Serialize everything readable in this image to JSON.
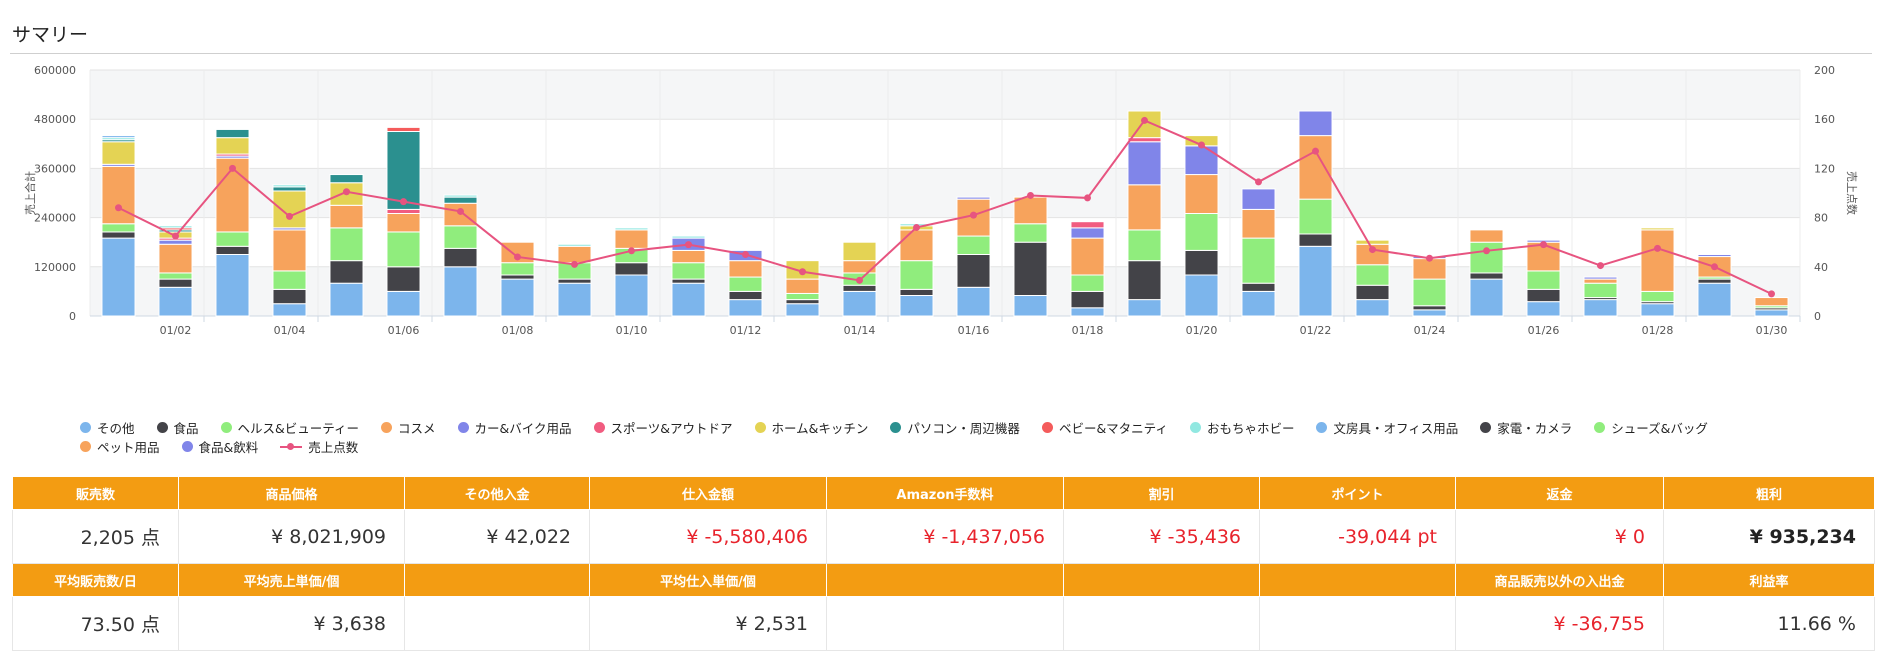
{
  "header": {
    "title": "サマリー"
  },
  "chart_data": {
    "type": "bar",
    "stacked": true,
    "categories": [
      "01/01",
      "01/02",
      "01/03",
      "01/04",
      "01/05",
      "01/06",
      "01/07",
      "01/08",
      "01/09",
      "01/10",
      "01/11",
      "01/12",
      "01/13",
      "01/14",
      "01/15",
      "01/16",
      "01/17",
      "01/18",
      "01/19",
      "01/20",
      "01/21",
      "01/22",
      "01/23",
      "01/24",
      "01/25",
      "01/26",
      "01/27",
      "01/28",
      "01/29",
      "01/30"
    ],
    "tick_labels": [
      "01/02",
      "01/04",
      "01/06",
      "01/08",
      "01/10",
      "01/12",
      "01/14",
      "01/16",
      "01/18",
      "01/20",
      "01/22",
      "01/24",
      "01/26",
      "01/28",
      "01/30"
    ],
    "ylabel": "売上合計",
    "y2label": "売上点数",
    "ylim": [
      0,
      600000
    ],
    "y2lim": [
      0,
      200
    ],
    "yticks": [
      "0",
      "120000",
      "240000",
      "360000",
      "480000",
      "600000"
    ],
    "y2ticks": [
      "0",
      "40",
      "80",
      "120",
      "160",
      "200"
    ],
    "legend_position": "bottom",
    "series": [
      {
        "name": "その他",
        "color": "#7cb5ec",
        "values": [
          190000,
          70000,
          150000,
          30000,
          80000,
          60000,
          120000,
          90000,
          80000,
          100000,
          80000,
          40000,
          30000,
          60000,
          50000,
          70000,
          50000,
          20000,
          40000,
          100000,
          60000,
          170000,
          40000,
          15000,
          90000,
          35000,
          40000,
          30000,
          80000,
          15000
        ]
      },
      {
        "name": "食品",
        "color": "#434348",
        "values": [
          15000,
          20000,
          20000,
          35000,
          55000,
          60000,
          45000,
          10000,
          10000,
          30000,
          10000,
          20000,
          10000,
          15000,
          15000,
          80000,
          130000,
          40000,
          95000,
          60000,
          20000,
          30000,
          35000,
          10000,
          15000,
          30000,
          5000,
          5000,
          10000,
          5000
        ]
      },
      {
        "name": "ヘルス&ビューティー",
        "color": "#90ed7d",
        "values": [
          20000,
          15000,
          35000,
          45000,
          80000,
          85000,
          55000,
          30000,
          40000,
          35000,
          40000,
          35000,
          15000,
          30000,
          70000,
          45000,
          45000,
          40000,
          75000,
          90000,
          110000,
          85000,
          50000,
          65000,
          75000,
          45000,
          35000,
          25000,
          5000,
          5000
        ]
      },
      {
        "name": "コスメ",
        "color": "#f7a35c",
        "values": [
          140000,
          70000,
          180000,
          100000,
          55000,
          45000,
          55000,
          50000,
          40000,
          45000,
          30000,
          40000,
          35000,
          30000,
          75000,
          90000,
          65000,
          90000,
          110000,
          95000,
          70000,
          155000,
          50000,
          50000,
          30000,
          70000,
          10000,
          150000,
          50000,
          20000
        ]
      },
      {
        "name": "カー&バイク用品",
        "color": "#8085e9",
        "values": [
          5000,
          10000,
          5000,
          5000,
          0,
          0,
          0,
          0,
          0,
          0,
          30000,
          25000,
          0,
          0,
          0,
          5000,
          0,
          25000,
          105000,
          70000,
          50000,
          60000,
          0,
          5000,
          0,
          5000,
          5000,
          0,
          5000,
          0
        ]
      },
      {
        "name": "スポーツ&アウトドア",
        "color": "#f15c80",
        "values": [
          0,
          5000,
          5000,
          0,
          0,
          10000,
          0,
          0,
          0,
          0,
          0,
          0,
          0,
          0,
          0,
          0,
          0,
          15000,
          10000,
          0,
          0,
          0,
          0,
          0,
          0,
          0,
          0,
          0,
          0,
          0
        ]
      },
      {
        "name": "ホーム&キッチン",
        "color": "#e4d354",
        "values": [
          55000,
          15000,
          40000,
          90000,
          55000,
          0,
          0,
          0,
          0,
          0,
          0,
          0,
          45000,
          45000,
          10000,
          0,
          0,
          0,
          65000,
          25000,
          0,
          0,
          10000,
          0,
          0,
          0,
          0,
          5000,
          0,
          0
        ]
      },
      {
        "name": "パソコン・周辺機器",
        "color": "#2b908f",
        "values": [
          5000,
          5000,
          20000,
          10000,
          20000,
          190000,
          15000,
          0,
          0,
          0,
          0,
          0,
          0,
          0,
          0,
          0,
          0,
          0,
          0,
          0,
          0,
          0,
          0,
          0,
          0,
          0,
          0,
          0,
          0,
          0
        ]
      },
      {
        "name": "ベビー&マタニティ",
        "color": "#f45b5b",
        "values": [
          0,
          5000,
          0,
          0,
          0,
          10000,
          0,
          0,
          0,
          0,
          0,
          0,
          0,
          0,
          0,
          0,
          0,
          0,
          0,
          0,
          0,
          0,
          0,
          0,
          0,
          0,
          0,
          0,
          0,
          0
        ]
      },
      {
        "name": "おもちゃホビー",
        "color": "#91e8e1",
        "values": [
          5000,
          5000,
          0,
          5000,
          0,
          0,
          5000,
          0,
          5000,
          5000,
          5000,
          0,
          0,
          0,
          5000,
          0,
          0,
          0,
          0,
          0,
          0,
          0,
          0,
          0,
          0,
          0,
          0,
          0,
          0,
          0
        ]
      },
      {
        "name": "文房具・オフィス用品",
        "color": "#7cb5ec",
        "values": [
          5000,
          0,
          0,
          0,
          0,
          0,
          0,
          0,
          0,
          0,
          0,
          0,
          0,
          0,
          0,
          0,
          0,
          0,
          0,
          0,
          0,
          0,
          0,
          0,
          0,
          0,
          0,
          0,
          0,
          0
        ]
      },
      {
        "name": "家電・カメラ",
        "color": "#434348",
        "values": [
          0,
          0,
          0,
          0,
          0,
          0,
          0,
          0,
          0,
          0,
          0,
          0,
          0,
          0,
          0,
          0,
          0,
          0,
          0,
          0,
          0,
          0,
          0,
          0,
          0,
          0,
          0,
          0,
          0,
          0
        ]
      },
      {
        "name": "シューズ&バッグ",
        "color": "#90ed7d",
        "values": [
          0,
          0,
          0,
          0,
          0,
          0,
          0,
          0,
          0,
          0,
          0,
          0,
          0,
          0,
          0,
          0,
          0,
          0,
          0,
          0,
          0,
          0,
          0,
          0,
          0,
          0,
          0,
          0,
          0,
          0
        ]
      },
      {
        "name": "ペット用品",
        "color": "#f7a35c",
        "values": [
          0,
          0,
          0,
          0,
          0,
          0,
          0,
          0,
          0,
          0,
          0,
          0,
          0,
          0,
          0,
          0,
          0,
          0,
          0,
          0,
          0,
          0,
          0,
          0,
          0,
          0,
          0,
          0,
          0,
          0
        ]
      },
      {
        "name": "食品&飲料",
        "color": "#8085e9",
        "values": [
          0,
          0,
          0,
          0,
          0,
          0,
          0,
          0,
          0,
          0,
          0,
          0,
          0,
          0,
          0,
          0,
          0,
          0,
          0,
          0,
          0,
          0,
          0,
          0,
          0,
          0,
          0,
          0,
          0,
          0
        ]
      }
    ],
    "line_series": {
      "name": "売上点数",
      "color": "#e75480",
      "values": [
        88,
        65,
        120,
        81,
        101,
        93,
        85,
        48,
        42,
        53,
        58,
        50,
        36,
        29,
        72,
        82,
        98,
        96,
        159,
        139,
        109,
        134,
        54,
        47,
        53,
        58,
        41,
        55,
        40,
        18
      ]
    }
  },
  "table": {
    "headers1": [
      "販売数",
      "商品価格",
      "その他入金",
      "仕入金額",
      "Amazon手数料",
      "割引",
      "ポイント",
      "返金",
      "粗利"
    ],
    "values1": [
      "2,205 点",
      "¥ 8,021,909",
      "¥ 42,022",
      "¥ -5,580,406",
      "¥ -1,437,056",
      "¥ -35,436",
      "-39,044 pt",
      "¥ 0",
      "¥ 935,234"
    ],
    "headers2": [
      "平均販売数/日",
      "平均売上単価/個",
      "",
      "平均仕入単価/個",
      "",
      "",
      "",
      "商品販売以外の入出金",
      "利益率"
    ],
    "values2": [
      "73.50 点",
      "¥ 3,638",
      "",
      "¥ 2,531",
      "",
      "",
      "",
      "¥ -36,755",
      "11.66 %"
    ]
  }
}
